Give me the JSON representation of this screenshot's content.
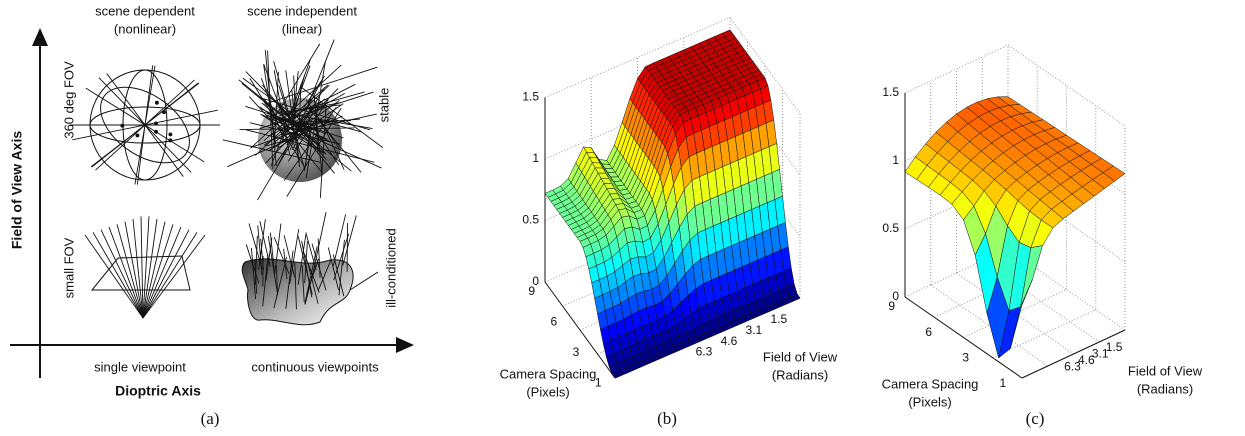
{
  "panel_a": {
    "caption": "(a)",
    "y_axis_label": "Field of View Axis",
    "x_axis_label": "Dioptric Axis",
    "columns": [
      {
        "title": "scene dependent",
        "subtitle": "(nonlinear)"
      },
      {
        "title": "scene independent",
        "subtitle": "(linear)"
      }
    ],
    "rows_left": [
      "360 deg FOV",
      "small FOV"
    ],
    "rows_right": [
      "stable",
      "ill-conditioned"
    ],
    "bottom_labels": [
      "single viewpoint",
      "continuous viewpoints"
    ]
  },
  "panel_b": {
    "caption": "(b)",
    "z_ticks": [
      "0",
      "0.5",
      "1",
      "1.5"
    ],
    "spacing_ticks": [
      "9",
      "6",
      "3",
      "1"
    ],
    "fov_ticks": [
      "6.3",
      "4.6",
      "3.1",
      "1.5"
    ],
    "spacing_label": [
      "Camera Spacing",
      "(Pixels)"
    ],
    "fov_label": [
      "Field of View",
      "(Radians)"
    ]
  },
  "panel_c": {
    "caption": "(c)",
    "z_ticks": [
      "0",
      "0.5",
      "1",
      "1.5"
    ],
    "spacing_ticks": [
      "9",
      "6",
      "3",
      "1"
    ],
    "fov_ticks": [
      "6.3",
      "4.6",
      "3.1",
      "1.5"
    ],
    "spacing_label": [
      "Camera Spacing",
      "(Pixels)"
    ],
    "fov_label": [
      "Field of View",
      "(Radians)"
    ]
  }
}
